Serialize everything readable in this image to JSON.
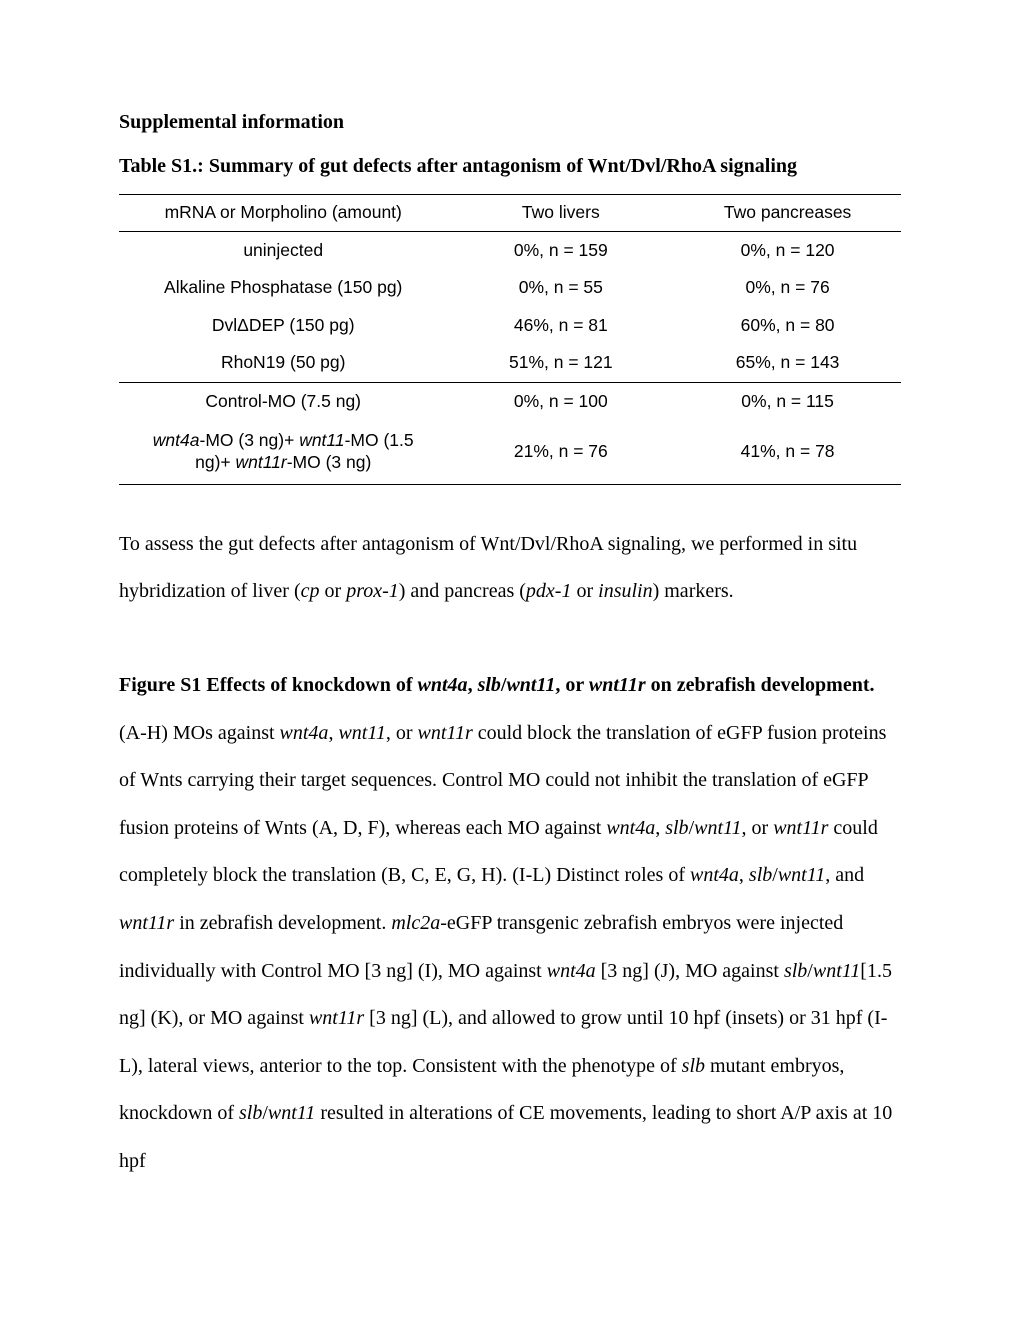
{
  "document": {
    "section_heading": "Supplemental information",
    "table_title": "Table S1.: Summary of gut defects after antagonism of Wnt/Dvl/RhoA signaling",
    "table": {
      "background_color": "#ffffff",
      "border_color": "#000000",
      "font_family": "Arial",
      "font_size_pt": 13,
      "columns": [
        {
          "label": "mRNA or Morpholino (amount)",
          "width_pct": 42,
          "align": "center"
        },
        {
          "label": "Two livers",
          "width_pct": 29,
          "align": "center"
        },
        {
          "label": "Two pancreases",
          "width_pct": 29,
          "align": "center"
        }
      ],
      "sections": [
        {
          "rows": [
            {
              "c1": "uninjected",
              "c2": "0%, n = 159",
              "c3": "0%, n = 120"
            },
            {
              "c1": "Alkaline Phosphatase (150 pg)",
              "c2": "0%, n = 55",
              "c3": "0%, n = 76"
            },
            {
              "c1_html": "Dvl&#916;DEP (150 pg)",
              "c2": "46%, n = 81",
              "c3": "60%, n = 80"
            },
            {
              "c1": "RhoN19 (50 pg)",
              "c2": "51%, n = 121",
              "c3": "65%, n = 143"
            }
          ]
        },
        {
          "rows": [
            {
              "c1": "Control-MO (7.5 ng)",
              "c2": "0%, n = 100",
              "c3": "0%, n = 115"
            },
            {
              "c1_segments": [
                {
                  "t": "wnt4a",
                  "ital": true
                },
                {
                  "t": "-MO (3 ng)+ "
                },
                {
                  "t": "wnt11",
                  "ital": true
                },
                {
                  "t": "-MO (1.5"
                },
                {
                  "br": true
                },
                {
                  "t": "ng)+ "
                },
                {
                  "t": "wnt11r",
                  "ital": true
                },
                {
                  "t": "-MO (3 ng)"
                }
              ],
              "c2": "21%, n = 76",
              "c3": "41%, n = 78"
            }
          ]
        }
      ]
    },
    "table_caption": {
      "segments": [
        {
          "t": "To assess the gut defects after antagonism of Wnt/Dvl/RhoA signaling, we performed in situ hybridization of liver ("
        },
        {
          "t": "cp",
          "ital": true
        },
        {
          "t": " or "
        },
        {
          "t": "prox-1",
          "ital": true
        },
        {
          "t": ") and pancreas ("
        },
        {
          "t": "pdx-1",
          "ital": true
        },
        {
          "t": " or "
        },
        {
          "t": "insulin",
          "ital": true
        },
        {
          "t": ") markers."
        }
      ]
    },
    "figure_title": {
      "segments": [
        {
          "t": "Figure S1 Effects of knockdown of ",
          "bold": true
        },
        {
          "t": "wnt4a",
          "bold": true,
          "ital": true
        },
        {
          "t": ", ",
          "bold": true
        },
        {
          "t": "slb",
          "bold": true,
          "ital": true
        },
        {
          "t": "/",
          "bold": true
        },
        {
          "t": "wnt11",
          "bold": true,
          "ital": true
        },
        {
          "t": ", or ",
          "bold": true
        },
        {
          "t": "wnt11r",
          "bold": true,
          "ital": true
        },
        {
          "t": " on zebrafish development.",
          "bold": true
        }
      ]
    },
    "figure_body": {
      "segments": [
        {
          "t": "(A-H) MOs against "
        },
        {
          "t": "wnt4a",
          "ital": true
        },
        {
          "t": ", "
        },
        {
          "t": "wnt11",
          "ital": true
        },
        {
          "t": ", or "
        },
        {
          "t": "wnt11r",
          "ital": true
        },
        {
          "t": " could block the translation of eGFP fusion proteins of Wnts carrying their target sequences. Control MO could not inhibit the translation of eGFP fusion proteins of Wnts (A, D, F), whereas each MO against "
        },
        {
          "t": "wnt4a",
          "ital": true
        },
        {
          "t": ", "
        },
        {
          "t": "slb",
          "ital": true
        },
        {
          "t": "/"
        },
        {
          "t": "wnt11",
          "ital": true
        },
        {
          "t": ", or "
        },
        {
          "t": "wnt11r",
          "ital": true
        },
        {
          "t": " could completely block the translation (B, C, E, G, H)."
        },
        {
          "br": true
        },
        {
          "t": "(I-L) Distinct roles of "
        },
        {
          "t": "wnt4a",
          "ital": true
        },
        {
          "t": ", "
        },
        {
          "t": "slb",
          "ital": true
        },
        {
          "t": "/"
        },
        {
          "t": "wnt11",
          "ital": true
        },
        {
          "t": ", and "
        },
        {
          "t": "wnt11r",
          "ital": true
        },
        {
          "t": " in zebrafish development. "
        },
        {
          "t": "mlc2a",
          "ital": true
        },
        {
          "t": "-"
        },
        {
          "t": "eGFP transgenic zebrafish embryos were injected individually with Control MO [3 ng] (I), MO against "
        },
        {
          "t": "wnt4a",
          "ital": true
        },
        {
          "t": " [3 ng] (J), MO against "
        },
        {
          "t": "slb",
          "ital": true
        },
        {
          "t": "/"
        },
        {
          "t": "wnt11",
          "ital": true
        },
        {
          "t": "[1.5 ng] (K), or MO against "
        },
        {
          "t": "wnt11r",
          "ital": true
        },
        {
          "t": " [3 ng] (L), and allowed to grow until 10 hpf (insets) or 31 hpf (I-L), lateral views, anterior to the top. Consistent with the phenotype of "
        },
        {
          "t": "slb",
          "ital": true
        },
        {
          "t": " mutant embryos, knockdown of "
        },
        {
          "t": "slb",
          "ital": true
        },
        {
          "t": "/"
        },
        {
          "t": "wnt11",
          "ital": true
        },
        {
          "t": " resulted in alterations of CE movements, leading to short A/P axis at 10 hpf"
        }
      ]
    }
  },
  "style": {
    "page_bg": "#ffffff",
    "text_color": "#000000",
    "body_font": "Times New Roman",
    "body_font_size_pt": 15,
    "body_line_height": 2.38
  }
}
